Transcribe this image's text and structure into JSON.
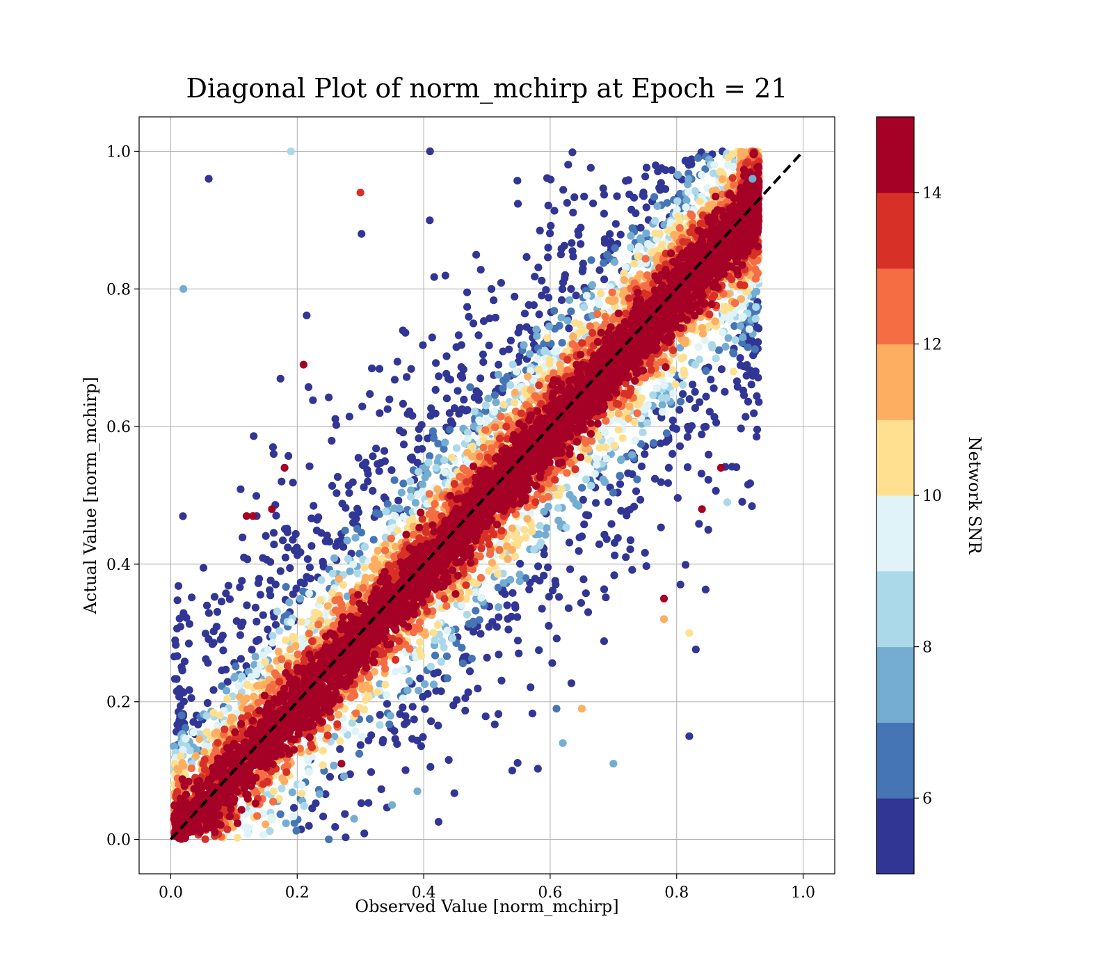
{
  "chart_data": {
    "type": "scatter",
    "title": "Diagonal Plot of norm_mchirp at Epoch = 21",
    "xlabel": "Observed Value [norm_mchirp]",
    "ylabel": "Actual Value [norm_mchirp]",
    "xlim": [
      -0.05,
      1.05
    ],
    "ylim": [
      -0.05,
      1.05
    ],
    "xticks": [
      "0.0",
      "0.2",
      "0.4",
      "0.6",
      "0.8",
      "1.0"
    ],
    "yticks": [
      "0.0",
      "0.2",
      "0.4",
      "0.6",
      "0.8",
      "1.0"
    ],
    "grid": true,
    "reference_line": {
      "style": "dashed",
      "color": "#000000",
      "from": [
        0,
        0
      ],
      "to": [
        1,
        1
      ]
    },
    "colorbar": {
      "label": "Network SNR",
      "range": [
        5,
        15
      ],
      "ticks": [
        "6",
        "8",
        "10",
        "12",
        "14"
      ],
      "colors": [
        "#313695",
        "#4575b4",
        "#74add1",
        "#abd9e9",
        "#e0f3f8",
        "#fee090",
        "#fdae61",
        "#f46d43",
        "#d73027",
        "#a50026"
      ]
    },
    "sample_points": [
      {
        "x": 0.21,
        "y": 0.69,
        "snr": 14.8
      },
      {
        "x": 0.13,
        "y": 0.47,
        "snr": 14.8
      },
      {
        "x": 0.18,
        "y": 0.54,
        "snr": 14.8
      },
      {
        "x": 0.87,
        "y": 0.54,
        "snr": 14.8
      },
      {
        "x": 0.82,
        "y": 0.15,
        "snr": 5.2
      },
      {
        "x": 0.25,
        "y": 0.0,
        "snr": 6.2
      },
      {
        "x": 0.7,
        "y": 0.11,
        "snr": 7.5
      },
      {
        "x": 0.61,
        "y": 0.19,
        "snr": 6.0
      },
      {
        "x": 0.54,
        "y": 0.1,
        "snr": 5.2
      },
      {
        "x": 0.82,
        "y": 0.3,
        "snr": 10.5
      },
      {
        "x": 0.41,
        "y": 1.0,
        "snr": 5.2
      },
      {
        "x": 0.19,
        "y": 1.0,
        "snr": 8.5
      },
      {
        "x": 0.92,
        "y": 0.96,
        "snr": 7.0
      },
      {
        "x": 0.06,
        "y": 0.96,
        "snr": 5.2
      },
      {
        "x": 0.3,
        "y": 0.94,
        "snr": 13.0
      },
      {
        "x": 0.02,
        "y": 0.8,
        "snr": 7.5
      },
      {
        "x": 0.85,
        "y": 0.45,
        "snr": 5.2
      },
      {
        "x": 0.84,
        "y": 0.48,
        "snr": 14.8
      },
      {
        "x": 0.89,
        "y": 0.68,
        "snr": 10.5
      },
      {
        "x": 0.78,
        "y": 0.35,
        "snr": 14.8
      },
      {
        "x": 0.78,
        "y": 0.32,
        "snr": 11.5
      },
      {
        "x": 0.88,
        "y": 0.49,
        "snr": 8.5
      },
      {
        "x": 0.62,
        "y": 0.14,
        "snr": 7.0
      },
      {
        "x": 0.65,
        "y": 0.19,
        "snr": 11.5
      },
      {
        "x": 0.35,
        "y": 0.05,
        "snr": 7.0
      },
      {
        "x": 0.29,
        "y": 0.03,
        "snr": 7.5
      },
      {
        "x": 0.39,
        "y": 0.07,
        "snr": 7.0
      },
      {
        "x": 0.27,
        "y": 0.11,
        "snr": 14.8
      },
      {
        "x": 0.12,
        "y": 0.47,
        "snr": 14.8
      },
      {
        "x": 0.16,
        "y": 0.48,
        "snr": 14.8
      }
    ]
  },
  "figure_text": {
    "title": "Diagonal Plot of norm_mchirp at Epoch = 21",
    "xlabel": "Observed Value [norm_mchirp]",
    "ylabel": "Actual Value [norm_mchirp]",
    "colorbar_label": "Network SNR"
  }
}
